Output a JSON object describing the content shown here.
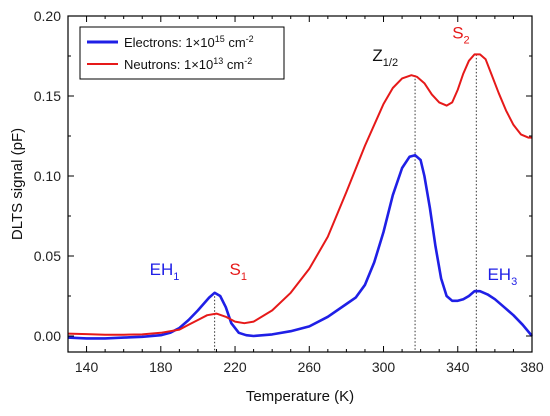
{
  "chart_data": {
    "type": "line",
    "xlabel": "Temperature (K)",
    "ylabel": "DLTS signal (pF)",
    "xlim": [
      130,
      380
    ],
    "ylim": [
      -0.01,
      0.2
    ],
    "x_ticks": [
      140,
      180,
      220,
      260,
      300,
      340,
      380
    ],
    "x_tick_labels": [
      "140",
      "180",
      "220",
      "260",
      "300",
      "340",
      "380"
    ],
    "y_ticks": [
      0.0,
      0.05,
      0.1,
      0.15,
      0.2
    ],
    "y_tick_labels": [
      "0.00",
      "0.05",
      "0.10",
      "0.15",
      "0.20"
    ],
    "grid": false,
    "legend_position": "top-left",
    "series": [
      {
        "name": "Electrons",
        "legend_main": "Electrons: 1×10",
        "legend_exp": "15",
        "legend_unit": " cm",
        "legend_unit_exp": "-2",
        "color": "#1f1fe6",
        "x": [
          130,
          140,
          150,
          160,
          170,
          180,
          185,
          190,
          195,
          200,
          203,
          206,
          209,
          212,
          215,
          218,
          222,
          226,
          230,
          240,
          250,
          260,
          270,
          280,
          285,
          290,
          295,
          300,
          305,
          310,
          314,
          317,
          320,
          322,
          325,
          328,
          331,
          334,
          337,
          340,
          343,
          346,
          349,
          352,
          356,
          360,
          365,
          370,
          375,
          380
        ],
        "y": [
          -0.001,
          -0.0015,
          -0.0015,
          -0.001,
          -0.0005,
          0.0005,
          0.002,
          0.005,
          0.01,
          0.016,
          0.02,
          0.024,
          0.027,
          0.025,
          0.018,
          0.008,
          0.002,
          0.0005,
          0.0,
          0.001,
          0.003,
          0.006,
          0.012,
          0.02,
          0.024,
          0.032,
          0.046,
          0.065,
          0.088,
          0.105,
          0.112,
          0.113,
          0.11,
          0.1,
          0.08,
          0.056,
          0.036,
          0.025,
          0.022,
          0.022,
          0.023,
          0.025,
          0.028,
          0.028,
          0.026,
          0.023,
          0.018,
          0.013,
          0.007,
          0.0
        ]
      },
      {
        "name": "Neutrons",
        "legend_main": "Neutrons: 1×10",
        "legend_exp": "13",
        "legend_unit": " cm",
        "legend_unit_exp": "-2",
        "color": "#e61919",
        "x": [
          130,
          140,
          150,
          160,
          170,
          180,
          190,
          195,
          200,
          205,
          210,
          215,
          220,
          225,
          230,
          240,
          250,
          260,
          270,
          280,
          290,
          300,
          305,
          310,
          315,
          318,
          322,
          326,
          330,
          334,
          337,
          340,
          343,
          346,
          349,
          352,
          355,
          358,
          362,
          366,
          370,
          374,
          378,
          380
        ],
        "y": [
          0.0015,
          0.0012,
          0.0008,
          0.0008,
          0.001,
          0.002,
          0.004,
          0.007,
          0.01,
          0.013,
          0.014,
          0.012,
          0.009,
          0.008,
          0.009,
          0.016,
          0.027,
          0.042,
          0.062,
          0.09,
          0.119,
          0.145,
          0.155,
          0.161,
          0.163,
          0.162,
          0.158,
          0.151,
          0.146,
          0.144,
          0.146,
          0.154,
          0.164,
          0.172,
          0.176,
          0.176,
          0.173,
          0.164,
          0.152,
          0.141,
          0.132,
          0.126,
          0.124,
          0.124
        ]
      }
    ],
    "guides": [
      {
        "x": 209,
        "y_top": 0.027,
        "color": "#333333"
      },
      {
        "x": 317,
        "y_top": 0.163,
        "color": "#333333"
      },
      {
        "x": 350,
        "y_top": 0.176,
        "color": "#333333"
      }
    ],
    "annotations": [
      {
        "main": "EH",
        "sub": "1",
        "x": 174,
        "y": 0.038,
        "color": "#1f1fe6"
      },
      {
        "main": "S",
        "sub": "1",
        "x": 217,
        "y": 0.038,
        "color": "#e61919"
      },
      {
        "main": "Z",
        "sub": "1/2",
        "x": 294,
        "y": 0.172,
        "color": "#111111"
      },
      {
        "main": "S",
        "sub": "2",
        "x": 337,
        "y": 0.186,
        "color": "#e61919"
      },
      {
        "main": "EH",
        "sub": "3",
        "x": 356,
        "y": 0.035,
        "color": "#1f1fe6"
      }
    ]
  }
}
